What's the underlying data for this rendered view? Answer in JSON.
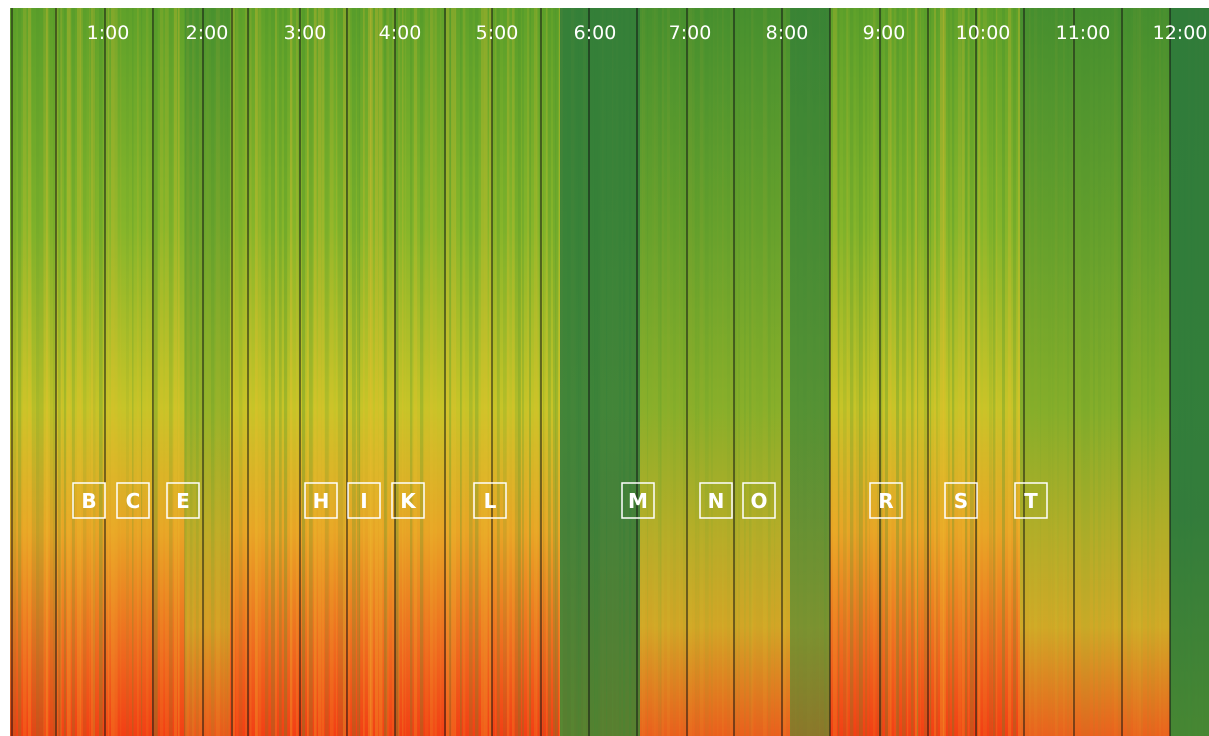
{
  "time_labels": [
    "1:00",
    "2:00",
    "3:00",
    "4:00",
    "5:00",
    "6:00",
    "7:00",
    "8:00",
    "9:00",
    "10:00",
    "11:00",
    "12:00"
  ],
  "markers": [
    "B",
    "C",
    "E",
    "H",
    "I",
    "K",
    "L",
    "M",
    "N",
    "O",
    "R",
    "S",
    "T"
  ]
}
